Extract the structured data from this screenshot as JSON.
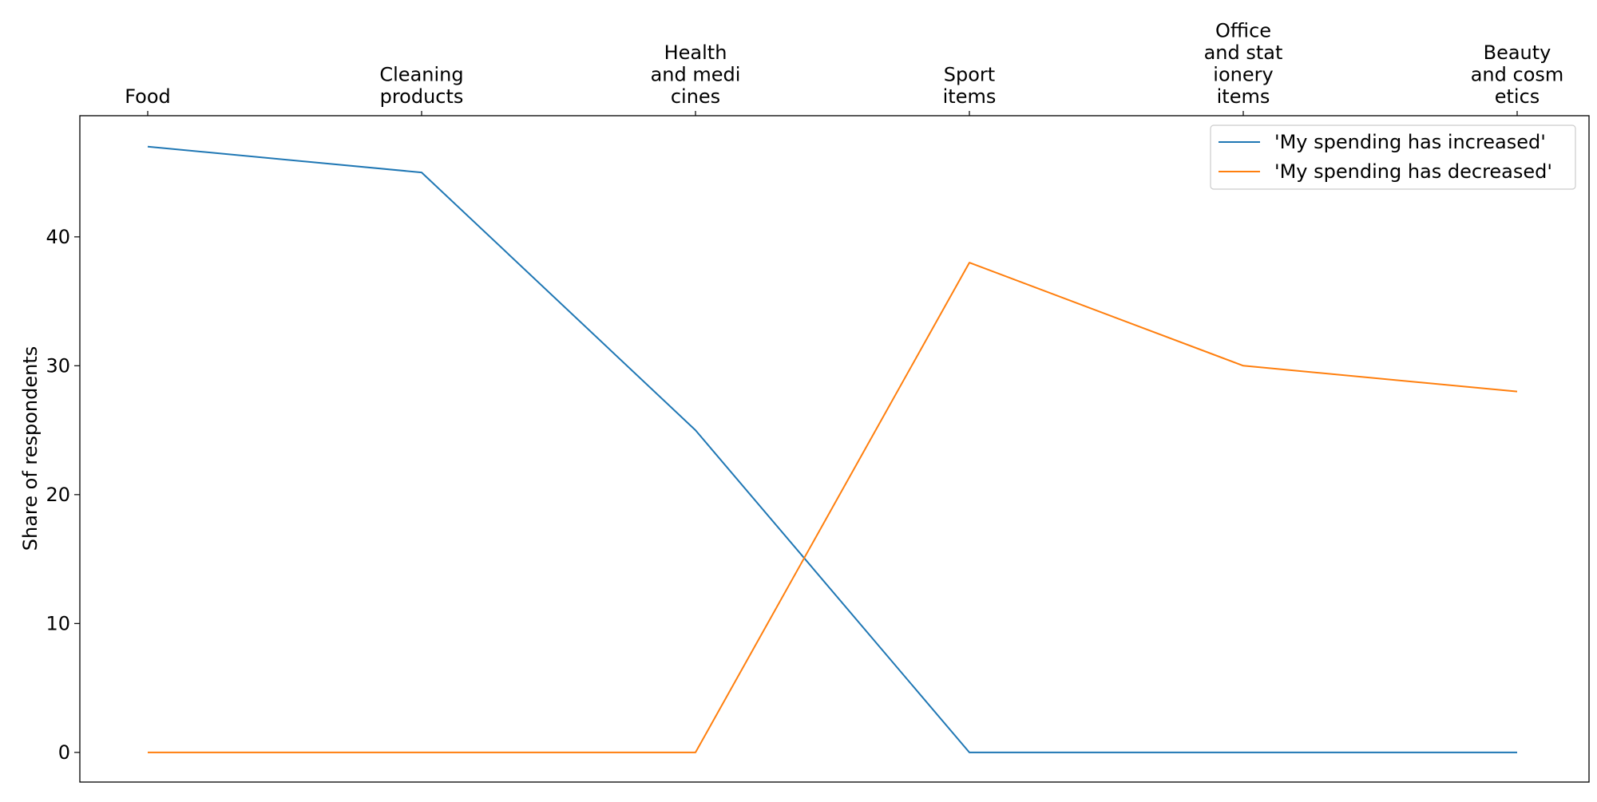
{
  "chart_data": {
    "type": "line",
    "title": "",
    "xlabel": "",
    "ylabel": "Share of respondents",
    "categories": [
      "Food",
      "Cleaning\nproducts",
      "Health\nand medi\ncines",
      "Sport\nitems",
      "Office\nand stat\nionery\nitems",
      "Beauty\nand cosm\netics"
    ],
    "x_axis_position": "top",
    "ylim": [
      -2.3,
      49.4
    ],
    "yticks": [
      0,
      10,
      20,
      30,
      40
    ],
    "grid": false,
    "legend_position": "top-right",
    "series": [
      {
        "name": "'My spending has increased'",
        "color": "#1f77b4",
        "values": [
          47,
          45,
          25,
          0,
          0,
          0
        ]
      },
      {
        "name": "'My spending has decreased'",
        "color": "#ff7f0e",
        "values": [
          0,
          0,
          0,
          38,
          30,
          28
        ]
      }
    ]
  }
}
